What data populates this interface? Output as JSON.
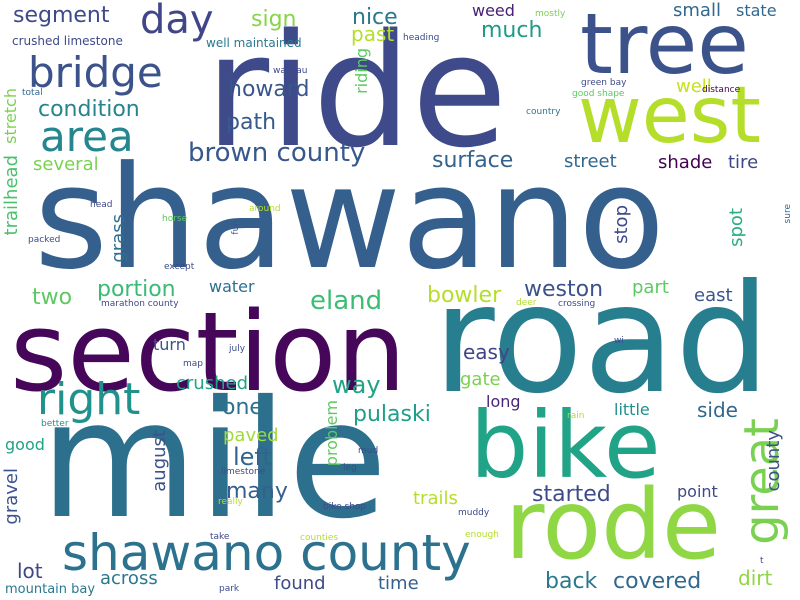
{
  "words": [
    "shawano",
    "ride",
    "section",
    "road",
    "mile",
    "bike",
    "tree",
    "west",
    "rode",
    "shawano county",
    "bridge",
    "area",
    "right",
    "great",
    "day",
    "brown county",
    "eland",
    "segment",
    "condition",
    "howard",
    "path",
    "two",
    "portion",
    "bowler",
    "weston",
    "way",
    "one",
    "pulaski",
    "left",
    "many",
    "started",
    "covered",
    "back",
    "surface",
    "nice",
    "sign",
    "much",
    "small",
    "state",
    "street",
    "shade",
    "tire",
    "weed",
    "past",
    "riding",
    "stretch",
    "trailhead",
    "several",
    "grass",
    "spot",
    "stop",
    "water",
    "east",
    "part",
    "easy",
    "gate",
    "turn",
    "crushed",
    "long",
    "little",
    "side",
    "county",
    "paved",
    "august",
    "good",
    "gravel",
    "lot",
    "across",
    "found",
    "time",
    "dirt",
    "point",
    "trails",
    "problem",
    "crushed limestone",
    "well maintained",
    "well",
    "mostly",
    "heading",
    "wausau",
    "total",
    "green bay",
    "good shape",
    "distance",
    "country",
    "head",
    "horse",
    "fun",
    "around",
    "sure",
    "packed",
    "except",
    "marathon county",
    "deer",
    "crossing",
    "map",
    "july",
    "wi",
    "better",
    "rain",
    "mud",
    "leg",
    "limestone",
    "really",
    "muddy",
    "bike shop",
    "enough",
    "take",
    "counties",
    "mountain bay",
    "park",
    "t"
  ]
}
